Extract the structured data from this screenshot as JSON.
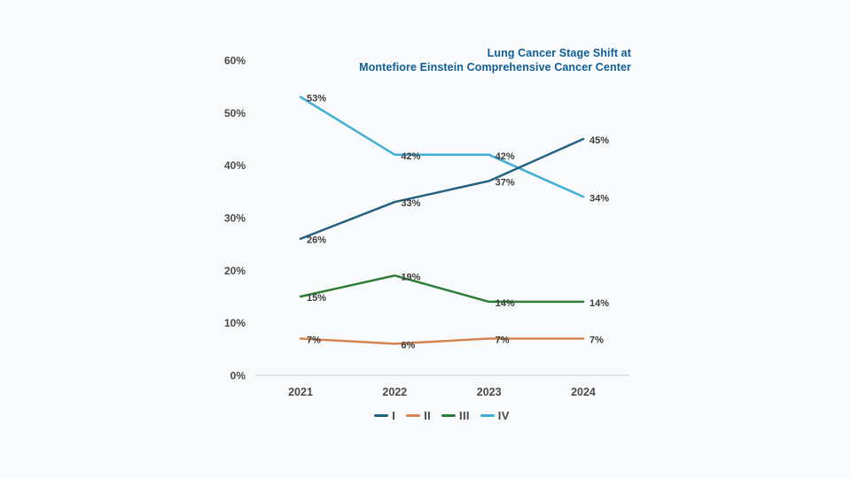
{
  "page": {
    "background_color": "#f8fafb",
    "axis_line_color": "#d8dbdd",
    "tick_label_color": "#4b4b4b",
    "data_label_color": "#3d3d3d"
  },
  "title": {
    "line1": "Lung Cancer Stage Shift at",
    "line2": "Montefiore Einstein Comprehensive Cancer Center",
    "color": "#105e95"
  },
  "chart_data": {
    "type": "line",
    "categories": [
      "2021",
      "2022",
      "2023",
      "2024"
    ],
    "series": [
      {
        "name": "I",
        "color": "#24607f",
        "values": [
          26,
          33,
          37,
          45
        ],
        "labels": [
          "26%",
          "33%",
          "37%",
          "45%"
        ]
      },
      {
        "name": "II",
        "color": "#d5854f",
        "values": [
          7,
          6,
          7,
          7
        ],
        "labels": [
          "7%",
          "6%",
          "7%",
          "7%"
        ]
      },
      {
        "name": "III",
        "color": "#2e7d36",
        "values": [
          15,
          19,
          14,
          14
        ],
        "labels": [
          "15%",
          "19%",
          "14%",
          "14%"
        ]
      },
      {
        "name": "IV",
        "color": "#41aed6",
        "values": [
          53,
          42,
          42,
          34
        ],
        "labels": [
          "53%",
          "42%",
          "42%",
          "34%"
        ]
      }
    ],
    "y_ticks": [
      "0%",
      "10%",
      "20%",
      "30%",
      "40%",
      "50%",
      "60%"
    ],
    "ylim": [
      0,
      60
    ],
    "xlabel": "",
    "ylabel": "",
    "grid": "baseline-only",
    "legend_position": "bottom-center",
    "legend_entries": [
      "I",
      "II",
      "III",
      "IV"
    ]
  }
}
